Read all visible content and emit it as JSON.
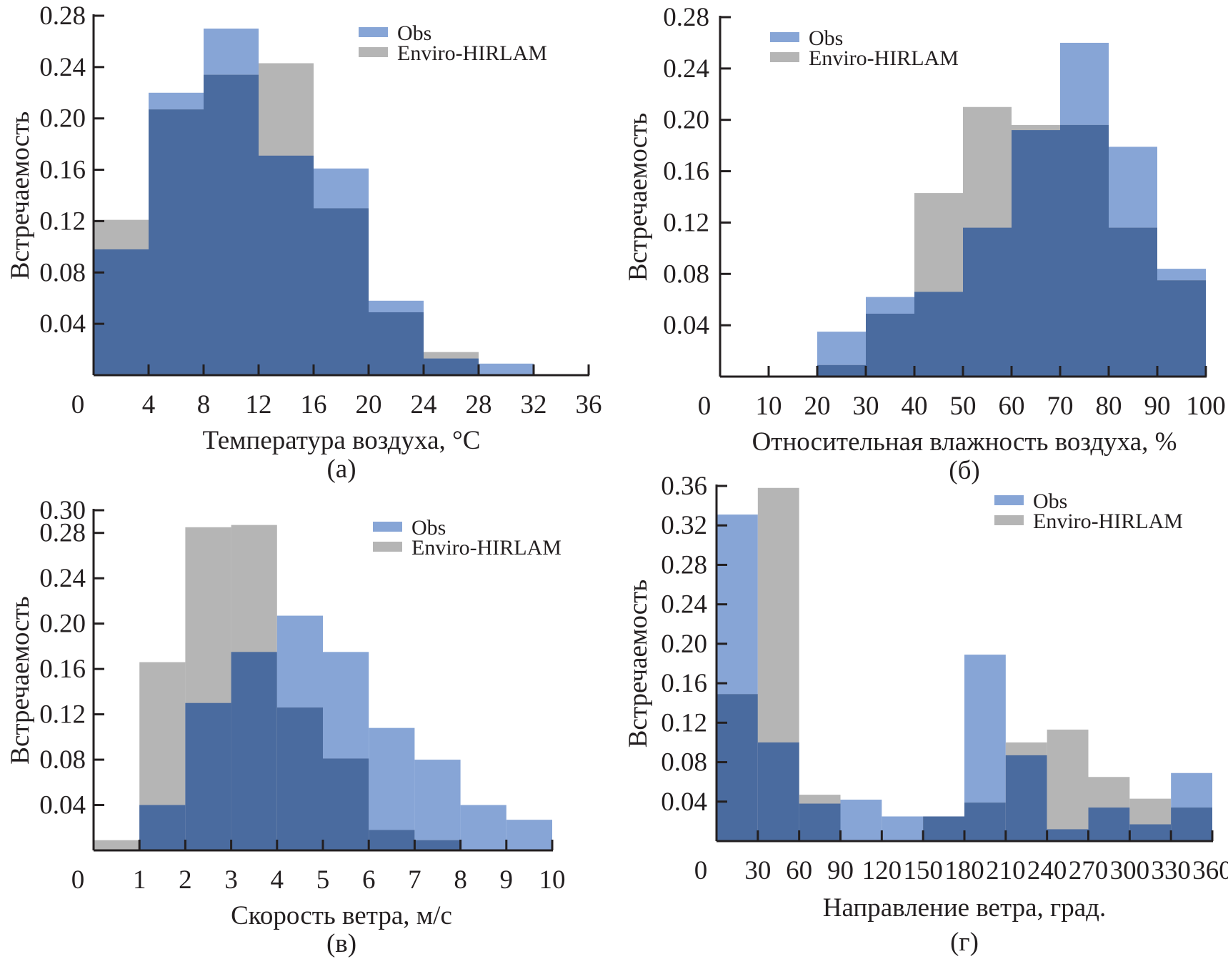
{
  "figure": {
    "colors": {
      "obs": "#87a5d6",
      "model": "#b5b5b5",
      "overlap": "#4a6b9f",
      "axis": "#231f20"
    }
  },
  "chart_data": [
    {
      "id": "a",
      "type": "bar",
      "caption": "(а)",
      "title": "",
      "xlabel": "Температура воздуха, °С",
      "ylabel": "Встречаемость",
      "xlim": [
        0,
        36
      ],
      "ylim": [
        0,
        0.28
      ],
      "xticks": [
        0,
        4,
        8,
        12,
        16,
        20,
        24,
        28,
        32,
        36
      ],
      "xtick_labels": [
        "0",
        "4",
        "8",
        "12",
        "16",
        "20",
        "24",
        "28",
        "32",
        "36"
      ],
      "yticks": [
        0.04,
        0.08,
        0.12,
        0.16,
        0.2,
        0.24,
        0.28
      ],
      "ytick_labels": [
        "0.04",
        "0.08",
        "0.12",
        "0.16",
        "0.20",
        "0.24",
        "0.28"
      ],
      "bin_edges": [
        0,
        4,
        8,
        12,
        16,
        20,
        24,
        28,
        32
      ],
      "legend": {
        "placement": "top-right",
        "entries": [
          "Obs",
          "Enviro-HIRLAM"
        ]
      },
      "series": [
        {
          "name": "Obs",
          "values": [
            0.098,
            0.22,
            0.27,
            0.171,
            0.161,
            0.058,
            0.013,
            0.009
          ]
        },
        {
          "name": "Enviro-HIRLAM",
          "values": [
            0.121,
            0.207,
            0.234,
            0.243,
            0.13,
            0.049,
            0.018,
            0.0
          ]
        }
      ]
    },
    {
      "id": "b",
      "type": "bar",
      "caption": "(б)",
      "title": "",
      "xlabel": "Относительная влажность воздуха, %",
      "ylabel": "Встречаемость",
      "xlim": [
        0,
        100
      ],
      "ylim": [
        0,
        0.28
      ],
      "xticks": [
        0,
        10,
        20,
        30,
        40,
        50,
        60,
        70,
        80,
        90,
        100
      ],
      "xtick_labels": [
        "0",
        "10",
        "20",
        "30",
        "40",
        "50",
        "60",
        "70",
        "80",
        "90",
        "100"
      ],
      "yticks": [
        0.04,
        0.08,
        0.12,
        0.16,
        0.2,
        0.24,
        0.28
      ],
      "ytick_labels": [
        "0.04",
        "0.08",
        "0.12",
        "0.16",
        "0.20",
        "0.24",
        "0.28"
      ],
      "bin_edges": [
        20,
        30,
        40,
        50,
        60,
        70,
        80,
        90,
        100
      ],
      "legend": {
        "placement": "top-left",
        "entries": [
          "Obs",
          "Enviro-HIRLAM"
        ]
      },
      "series": [
        {
          "name": "Obs",
          "values": [
            0.035,
            0.062,
            0.066,
            0.116,
            0.192,
            0.26,
            0.179,
            0.084
          ]
        },
        {
          "name": "Enviro-HIRLAM",
          "values": [
            0.009,
            0.049,
            0.143,
            0.21,
            0.196,
            0.196,
            0.116,
            0.075
          ]
        }
      ]
    },
    {
      "id": "c",
      "type": "bar",
      "caption": "(в)",
      "title": "",
      "xlabel": "Скорость ветра, м/с",
      "ylabel": "Встречаемость",
      "xlim": [
        0,
        10
      ],
      "ylim": [
        0,
        0.3
      ],
      "xticks": [
        0,
        1,
        2,
        3,
        4,
        5,
        6,
        7,
        8,
        9,
        10
      ],
      "xtick_labels": [
        "0",
        "1",
        "2",
        "3",
        "4",
        "5",
        "6",
        "7",
        "8",
        "9",
        "10"
      ],
      "yticks": [
        0.04,
        0.08,
        0.12,
        0.16,
        0.2,
        0.24,
        0.28,
        0.3
      ],
      "ytick_labels": [
        "0.04",
        "0.08",
        "0.12",
        "0.16",
        "0.20",
        "0.24",
        "0.28",
        "0.30"
      ],
      "bin_edges": [
        0,
        1,
        2,
        3,
        4,
        5,
        6,
        7,
        8,
        9,
        10
      ],
      "legend": {
        "placement": "top-right",
        "entries": [
          "Obs",
          "Enviro-HIRLAM"
        ]
      },
      "series": [
        {
          "name": "Obs",
          "values": [
            0.0,
            0.04,
            0.13,
            0.175,
            0.207,
            0.175,
            0.108,
            0.08,
            0.04,
            0.027
          ]
        },
        {
          "name": "Enviro-HIRLAM",
          "values": [
            0.009,
            0.166,
            0.285,
            0.287,
            0.126,
            0.081,
            0.018,
            0.009,
            0.0,
            0.0
          ]
        }
      ]
    },
    {
      "id": "d",
      "type": "bar",
      "caption": "(г)",
      "title": "",
      "xlabel": "Направление ветра, град.",
      "ylabel": "Встречаемость",
      "xlim": [
        0,
        360
      ],
      "ylim": [
        0,
        0.36
      ],
      "xticks": [
        0,
        30,
        60,
        90,
        120,
        150,
        180,
        210,
        240,
        270,
        300,
        330,
        360
      ],
      "xtick_labels": [
        "0",
        "30",
        "60",
        "90",
        "120",
        "150",
        "180",
        "210",
        "240",
        "270",
        "300",
        "330",
        "360"
      ],
      "yticks": [
        0.04,
        0.08,
        0.12,
        0.16,
        0.2,
        0.24,
        0.28,
        0.32,
        0.36
      ],
      "ytick_labels": [
        "0.04",
        "0.08",
        "0.12",
        "0.16",
        "0.20",
        "0.24",
        "0.28",
        "0.32",
        "0.36"
      ],
      "bin_edges": [
        0,
        30,
        60,
        90,
        120,
        150,
        180,
        210,
        240,
        270,
        300,
        330,
        360
      ],
      "legend": {
        "placement": "top-right",
        "entries": [
          "Obs",
          "Enviro-HIRLAM"
        ]
      },
      "series": [
        {
          "name": "Obs",
          "values": [
            0.331,
            0.1,
            0.038,
            0.042,
            0.025,
            0.025,
            0.189,
            0.087,
            0.012,
            0.034,
            0.017,
            0.069
          ]
        },
        {
          "name": "Enviro-HIRLAM",
          "values": [
            0.149,
            0.358,
            0.047,
            0.0,
            0.0,
            0.025,
            0.039,
            0.1,
            0.113,
            0.065,
            0.043,
            0.034
          ]
        }
      ]
    }
  ]
}
